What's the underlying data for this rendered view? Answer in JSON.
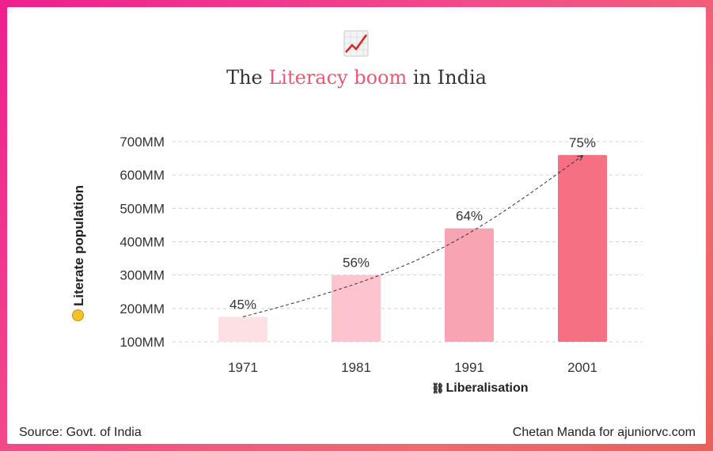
{
  "title": {
    "prefix": "The ",
    "highlight": "Literacy boom",
    "suffix": " in India"
  },
  "icon": "chart-increasing-icon",
  "source": "Source: Govt. of India",
  "credit": "Chetan Manda for ajuniorvc.com",
  "colors": {
    "accent": "#e75a72",
    "bars": [
      "#fde0e4",
      "#fdc4cd",
      "#f8a4b2",
      "#f47082"
    ]
  },
  "chart_data": {
    "type": "bar",
    "categories": [
      "1971",
      "1981",
      "1991",
      "2001"
    ],
    "values": [
      175,
      300,
      440,
      660
    ],
    "data_labels": [
      "45%",
      "56%",
      "64%",
      "75%"
    ],
    "ylabel": "Literate population",
    "ylim": [
      100,
      700
    ],
    "yticks": [
      "100MM",
      "200MM",
      "300MM",
      "400MM",
      "500MM",
      "600MM",
      "700MM"
    ],
    "ytick_values": [
      100,
      200,
      300,
      400,
      500,
      600,
      700
    ],
    "grid": true,
    "trend_line": "dashed",
    "annotation": {
      "text": "Liberalisation",
      "emoji": "shackles-icon",
      "category": "1991"
    }
  }
}
